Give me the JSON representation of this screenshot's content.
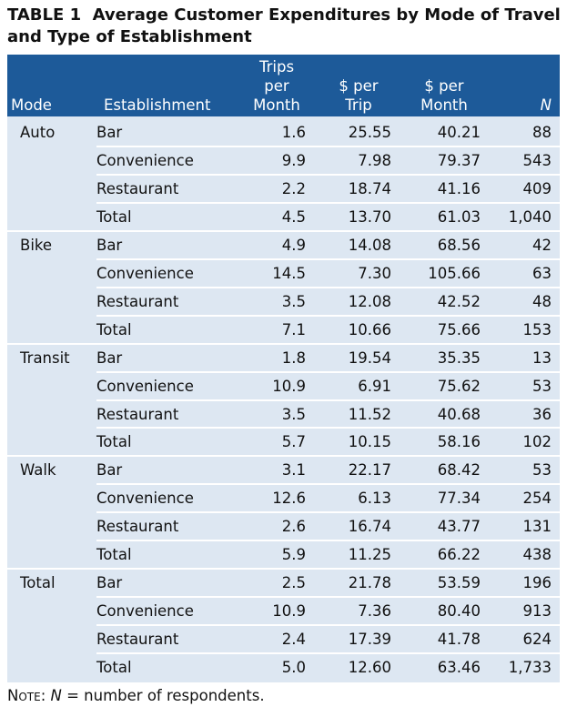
{
  "title": "TABLE 1  Average Customer Expenditures by Mode of Travel and Type of Establishment",
  "table": {
    "columns": [
      "Mode",
      "Establishment",
      "Trips per Month",
      "$ per Trip",
      "$ per Month",
      "N"
    ],
    "groups": [
      {
        "mode": "Auto",
        "rows": [
          [
            "Bar",
            "1.6",
            "25.55",
            "40.21",
            "88"
          ],
          [
            "Convenience",
            "9.9",
            "7.98",
            "79.37",
            "543"
          ],
          [
            "Restaurant",
            "2.2",
            "18.74",
            "41.16",
            "409"
          ],
          [
            "Total",
            "4.5",
            "13.70",
            "61.03",
            "1,040"
          ]
        ]
      },
      {
        "mode": "Bike",
        "rows": [
          [
            "Bar",
            "4.9",
            "14.08",
            "68.56",
            "42"
          ],
          [
            "Convenience",
            "14.5",
            "7.30",
            "105.66",
            "63"
          ],
          [
            "Restaurant",
            "3.5",
            "12.08",
            "42.52",
            "48"
          ],
          [
            "Total",
            "7.1",
            "10.66",
            "75.66",
            "153"
          ]
        ]
      },
      {
        "mode": "Transit",
        "rows": [
          [
            "Bar",
            "1.8",
            "19.54",
            "35.35",
            "13"
          ],
          [
            "Convenience",
            "10.9",
            "6.91",
            "75.62",
            "53"
          ],
          [
            "Restaurant",
            "3.5",
            "11.52",
            "40.68",
            "36"
          ],
          [
            "Total",
            "5.7",
            "10.15",
            "58.16",
            "102"
          ]
        ]
      },
      {
        "mode": "Walk",
        "rows": [
          [
            "Bar",
            "3.1",
            "22.17",
            "68.42",
            "53"
          ],
          [
            "Convenience",
            "12.6",
            "6.13",
            "77.34",
            "254"
          ],
          [
            "Restaurant",
            "2.6",
            "16.74",
            "43.77",
            "131"
          ],
          [
            "Total",
            "5.9",
            "11.25",
            "66.22",
            "438"
          ]
        ]
      },
      {
        "mode": "Total",
        "rows": [
          [
            "Bar",
            "2.5",
            "21.78",
            "53.59",
            "196"
          ],
          [
            "Convenience",
            "10.9",
            "7.36",
            "80.40",
            "913"
          ],
          [
            "Restaurant",
            "2.4",
            "17.39",
            "41.78",
            "624"
          ],
          [
            "Total",
            "5.0",
            "12.60",
            "63.46",
            "1,733"
          ]
        ]
      }
    ]
  },
  "note": {
    "label": "Note:",
    "symbol": "N",
    "text": "= number of respondents."
  }
}
